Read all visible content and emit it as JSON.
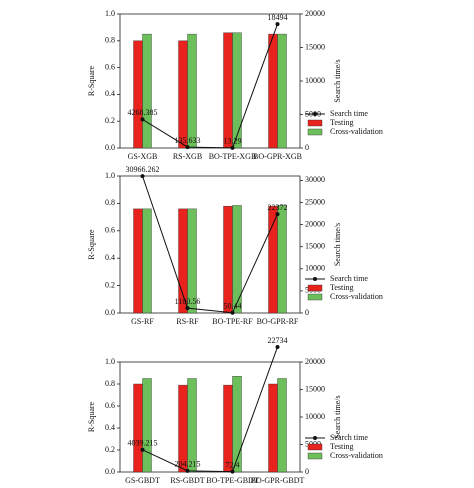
{
  "chart_data": [
    {
      "type": "bar",
      "ylabel": "R-Square",
      "y2label": "Search time/s",
      "categories": [
        "GS-XGB",
        "RS-XGB",
        "BO-TPE-XGB",
        "BO-GPR-XGB"
      ],
      "series": [
        {
          "name": "Testing",
          "color": "#e8221c",
          "values": [
            0.8,
            0.8,
            0.86,
            0.85
          ]
        },
        {
          "name": "Cross-validation",
          "color": "#6cbf5a",
          "values": [
            0.85,
            0.85,
            0.86,
            0.85
          ]
        },
        {
          "name": "Search time",
          "type": "line",
          "axis": "y2",
          "color": "#111111",
          "values": [
            4268.385,
            135.633,
            13.29,
            18494.0
          ]
        }
      ],
      "ylim": [
        0,
        1
      ],
      "yticks": [
        {
          "value": 0,
          "label": "0.0"
        },
        {
          "value": 0.2,
          "label": "0.2"
        },
        {
          "value": 0.4,
          "label": "0.4"
        },
        {
          "value": 0.6,
          "label": "0.6"
        },
        {
          "value": 0.8,
          "label": "0.8"
        },
        {
          "value": 1,
          "label": "1.0"
        }
      ],
      "y2lim": [
        0,
        20000
      ],
      "y2ticks": [
        0,
        5000,
        10000,
        15000,
        20000
      ]
    },
    {
      "type": "bar",
      "ylabel": "R-Square",
      "y2label": "Search time/s",
      "categories": [
        "GS-RF",
        "RS-RF",
        "BO-TPE-RF",
        "BO-GPR-RF"
      ],
      "series": [
        {
          "name": "Testing",
          "color": "#e8221c",
          "values": [
            0.76,
            0.76,
            0.78,
            0.78
          ]
        },
        {
          "name": "Cross-validation",
          "color": "#6cbf5a",
          "values": [
            0.76,
            0.76,
            0.785,
            0.785
          ]
        },
        {
          "name": "Search time",
          "type": "line",
          "axis": "y2",
          "color": "#111111",
          "values": [
            30966.262,
            1100.56,
            50.44,
            22372
          ]
        }
      ],
      "ylim": [
        0,
        1
      ],
      "yticks": [
        {
          "value": 0,
          "label": "0.0"
        },
        {
          "value": 0.2,
          "label": "0.2"
        },
        {
          "value": 0.4,
          "label": "0.4"
        },
        {
          "value": 0.6,
          "label": "0.6"
        },
        {
          "value": 0.8,
          "label": "0.8"
        },
        {
          "value": 1,
          "label": "1.0"
        }
      ],
      "y2lim": [
        0,
        31000
      ],
      "y2ticks": [
        0,
        5000,
        10000,
        15000,
        20000,
        25000,
        30000
      ]
    },
    {
      "type": "bar",
      "ylabel": "R-Square",
      "y2label": "Search time/s",
      "categories": [
        "GS-GBDT",
        "RS-GBDT",
        "BO-TPE-GBDT",
        "BO-GPR-GBDT"
      ],
      "series": [
        {
          "name": "Testing",
          "color": "#e8221c",
          "values": [
            0.8,
            0.79,
            0.79,
            0.8
          ]
        },
        {
          "name": "Cross-validation",
          "color": "#6cbf5a",
          "values": [
            0.85,
            0.85,
            0.87,
            0.85
          ]
        },
        {
          "name": "Search time",
          "type": "line",
          "axis": "y2",
          "color": "#111111",
          "values": [
            4039.215,
            204.215,
            72.4,
            22734
          ]
        }
      ],
      "ylim": [
        0,
        1
      ],
      "yticks": [
        {
          "value": 0,
          "label": "0.0"
        },
        {
          "value": 0.2,
          "label": "0.2"
        },
        {
          "value": 0.4,
          "label": "0.4"
        },
        {
          "value": 0.6,
          "label": "0.6"
        },
        {
          "value": 0.8,
          "label": "0.8"
        },
        {
          "value": 1,
          "label": "1.0"
        }
      ],
      "y2lim": [
        0,
        20000
      ],
      "y2ticks": [
        0,
        5000,
        10000,
        15000,
        20000
      ]
    }
  ]
}
